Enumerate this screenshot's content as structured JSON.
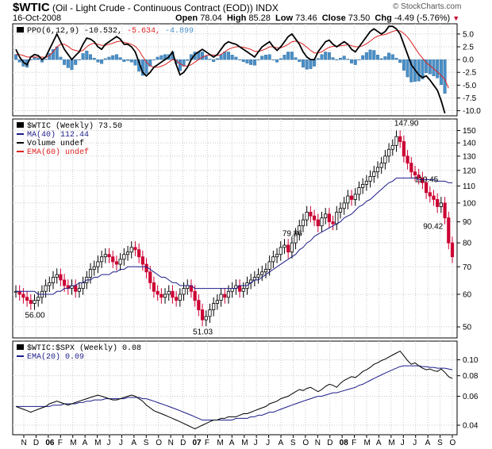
{
  "header": {
    "symbol": "$WTIC",
    "description": "(Oil - Light Crude - Continuous Contract (EOD)) INDX",
    "date": "16-Oct-2008",
    "open_label": "Open",
    "open": "78.04",
    "high_label": "High",
    "high": "85.28",
    "low_label": "Low",
    "low": "73.46",
    "close_label": "Close",
    "close": "73.50",
    "chg_label": "Chg",
    "chg": "-4.49 (-5.76%)",
    "copyright": "© StockCharts.com"
  },
  "colors": {
    "up": "#000000",
    "down": "#cc0033",
    "ma": "#1c1c8a",
    "ema": "#dd2222",
    "hist": "#4a8fc7"
  },
  "chart_data": [
    {
      "type": "line",
      "panel": "PPO",
      "legend": [
        {
          "text": "PPO(6,12,9) -10.532,",
          "color": "#000000"
        },
        {
          "text": "-5.634,",
          "color": "#dd2222"
        },
        {
          "text": "-4.899",
          "color": "#4a8fc7"
        }
      ],
      "ylim": [
        -11,
        7
      ],
      "yticks": [
        "5.0",
        "2.5",
        "0.0",
        "-2.5",
        "-5.0",
        "-7.5",
        "-10.0"
      ],
      "ytick_values": [
        5,
        2.5,
        0,
        -2.5,
        -5,
        -7.5,
        -10
      ],
      "series": [
        {
          "role": "ppo",
          "values": [
            2,
            0.5,
            -0.5,
            -1,
            0.5,
            1,
            0.8,
            0,
            0.5,
            2,
            3.5,
            5,
            3.5,
            2,
            1,
            0,
            0.8,
            1.5,
            3,
            4.2,
            4,
            3.5,
            2.5,
            2,
            3,
            3.5,
            4,
            4.5,
            4,
            3,
            3,
            2.5,
            1.5,
            -0.5,
            -2.5,
            -3.2,
            -2.5,
            -1.5,
            -1,
            -0.5,
            0,
            0.5,
            1.5,
            -1,
            -3,
            -2.5,
            -1.5,
            0,
            1,
            1.5,
            2,
            1.5,
            1,
            0.5,
            1,
            2,
            3,
            3.5,
            3.2,
            3,
            2.5,
            2,
            1.5,
            1,
            0.5,
            1.5,
            2.5,
            3,
            3.5,
            2.5,
            1.8,
            2.5,
            3.5,
            4.5,
            5,
            4,
            3,
            1.5,
            0.5,
            0,
            0,
            1.5,
            2.5,
            3.5,
            3.8,
            3,
            2.5,
            3,
            3.5,
            3,
            2,
            1.5,
            2.5,
            3.5,
            4.5,
            5.5,
            6,
            5.5,
            5,
            5.5,
            6.5,
            6.5,
            6,
            5,
            3,
            1,
            -1,
            -2,
            -3,
            -3.5,
            -3.2,
            -4,
            -5,
            -6,
            -8,
            -10.5
          ]
        },
        {
          "role": "signal",
          "values": [
            1,
            1,
            0.8,
            0.5,
            0.5,
            0.5,
            0.5,
            0.5,
            0.4,
            0.8,
            1.5,
            2.5,
            3,
            3,
            2.6,
            2,
            1.8,
            1.6,
            1.8,
            2.5,
            3,
            3.2,
            3,
            2.8,
            2.8,
            3,
            3.2,
            3.5,
            3.6,
            3.4,
            3.2,
            3,
            2.6,
            1.8,
            0.6,
            -0.5,
            -1.2,
            -1.5,
            -1.5,
            -1.3,
            -1,
            -0.5,
            0,
            -0.2,
            -0.8,
            -1.2,
            -1.3,
            -1,
            -0.5,
            0,
            0.5,
            0.8,
            0.9,
            0.9,
            0.8,
            1,
            1.5,
            2,
            2.3,
            2.5,
            2.5,
            2.4,
            2.2,
            2,
            1.6,
            1.6,
            1.8,
            2.1,
            2.5,
            2.5,
            2.3,
            2.3,
            2.6,
            3,
            3.5,
            3.6,
            3.4,
            3,
            2.4,
            1.8,
            1.3,
            1.3,
            1.5,
            2,
            2.4,
            2.6,
            2.6,
            2.7,
            2.8,
            2.9,
            2.7,
            2.5,
            2.5,
            2.7,
            3.1,
            3.6,
            4.2,
            4.6,
            4.8,
            4.9,
            5.2,
            5.5,
            5.7,
            5.6,
            5.1,
            4.4,
            3.4,
            2.3,
            1.2,
            0.3,
            -0.6,
            -1.2,
            -1.8,
            -2.4,
            -3.1,
            -3.9,
            -5.6
          ]
        }
      ]
    },
    {
      "type": "bar",
      "panel": "Price",
      "legend": [
        {
          "text": "$WTIC (Weekly) 73.50",
          "color": "#000000"
        },
        {
          "text": "MA(40) 112.44",
          "color": "#1c1c8a"
        },
        {
          "text": "Volume undef",
          "color": "#000000"
        },
        {
          "text": "EMA(60) undef",
          "color": "#dd2222"
        }
      ],
      "scale": "log",
      "ylim": [
        47,
        160
      ],
      "yticks": [
        "150",
        "140",
        "130",
        "120",
        "110",
        "100",
        "90",
        "80",
        "70",
        "60",
        "50"
      ],
      "ytick_values": [
        150,
        140,
        130,
        120,
        110,
        100,
        90,
        80,
        70,
        60,
        50
      ],
      "annotations": [
        {
          "text": "147.90",
          "value": 147.9
        },
        {
          "text": "110.45",
          "value": 110.45
        },
        {
          "text": "90.42",
          "value": 90.42
        },
        {
          "text": "79.86",
          "value": 79.86
        },
        {
          "text": "56.00",
          "value": 56.0
        },
        {
          "text": "51.03",
          "value": 51.03
        }
      ],
      "series": [
        {
          "role": "close",
          "values": [
            61,
            60,
            59,
            58,
            57,
            58,
            59,
            61,
            63,
            64,
            66,
            67,
            65,
            63,
            62,
            63,
            61,
            62,
            64,
            66,
            69,
            70,
            72,
            74,
            75,
            74,
            72,
            71,
            73,
            75,
            76,
            78,
            77,
            74,
            71,
            68,
            64,
            61,
            60,
            59,
            60,
            61,
            59,
            58,
            60,
            62,
            63,
            61,
            58,
            55,
            52,
            53,
            55,
            57,
            58,
            60,
            59,
            61,
            62,
            63,
            61,
            62,
            64,
            65,
            66,
            67,
            68,
            69,
            72,
            74,
            75,
            78,
            79,
            76,
            80,
            84,
            88,
            91,
            95,
            93,
            91,
            88,
            92,
            94,
            90,
            89,
            95,
            97,
            100,
            104,
            102,
            105,
            109,
            111,
            113,
            116,
            119,
            122,
            125,
            130,
            135,
            138,
            145,
            141,
            130,
            125,
            119,
            117,
            115,
            112,
            106,
            104,
            102,
            98,
            100,
            92,
            80,
            74
          ]
        },
        {
          "role": "ma40",
          "values": [
            61,
            61,
            61,
            61,
            61,
            61,
            60,
            60,
            60,
            60,
            60,
            61,
            61,
            62,
            62,
            63,
            63,
            64,
            64,
            65,
            65,
            66,
            66,
            67,
            67,
            67,
            68,
            68,
            69,
            69,
            70,
            70,
            70,
            70,
            70,
            70,
            69,
            68,
            67,
            66,
            66,
            65,
            64,
            64,
            63,
            63,
            63,
            63,
            62,
            62,
            62,
            62,
            62,
            62,
            62,
            62,
            62,
            62,
            62,
            62,
            63,
            63,
            63,
            64,
            65,
            65,
            66,
            67,
            68,
            69,
            70,
            71,
            72,
            73,
            74,
            75,
            77,
            78,
            80,
            81,
            83,
            84,
            85,
            86,
            87,
            88,
            89,
            90,
            92,
            93,
            94,
            96,
            98,
            99,
            101,
            102,
            104,
            106,
            108,
            110,
            112,
            113,
            115,
            115,
            115,
            115,
            115,
            115,
            114,
            114,
            114,
            114,
            114,
            113,
            113,
            113,
            112,
            112
          ]
        }
      ]
    },
    {
      "type": "line",
      "panel": "Ratio",
      "legend": [
        {
          "text": "$WTIC:$SPX (Weekly) 0.08",
          "color": "#000000"
        },
        {
          "text": "EMA(20) 0.09",
          "color": "#1c1c8a"
        }
      ],
      "ylim": [
        0.035,
        0.13
      ],
      "yticks": [
        "0.10",
        "0.08",
        "0.06",
        "0.04"
      ],
      "ytick_values": [
        0.1,
        0.08,
        0.06,
        0.04
      ],
      "series": [
        {
          "role": "ratio",
          "values": [
            0.052,
            0.051,
            0.05,
            0.049,
            0.048,
            0.049,
            0.05,
            0.051,
            0.052,
            0.054,
            0.055,
            0.056,
            0.055,
            0.054,
            0.053,
            0.054,
            0.055,
            0.056,
            0.057,
            0.058,
            0.059,
            0.06,
            0.061,
            0.06,
            0.059,
            0.058,
            0.057,
            0.057,
            0.058,
            0.059,
            0.06,
            0.061,
            0.06,
            0.058,
            0.056,
            0.053,
            0.051,
            0.049,
            0.048,
            0.047,
            0.046,
            0.045,
            0.044,
            0.043,
            0.042,
            0.041,
            0.04,
            0.039,
            0.038,
            0.039,
            0.04,
            0.041,
            0.042,
            0.043,
            0.043,
            0.044,
            0.044,
            0.045,
            0.045,
            0.045,
            0.046,
            0.047,
            0.047,
            0.048,
            0.049,
            0.05,
            0.051,
            0.052,
            0.054,
            0.055,
            0.056,
            0.058,
            0.059,
            0.06,
            0.062,
            0.064,
            0.066,
            0.065,
            0.067,
            0.068,
            0.066,
            0.064,
            0.066,
            0.069,
            0.071,
            0.07,
            0.068,
            0.072,
            0.075,
            0.077,
            0.079,
            0.078,
            0.081,
            0.085,
            0.087,
            0.09,
            0.094,
            0.096,
            0.099,
            0.101,
            0.104,
            0.107,
            0.11,
            0.113,
            0.106,
            0.099,
            0.094,
            0.096,
            0.092,
            0.089,
            0.087,
            0.088,
            0.086,
            0.085,
            0.088,
            0.084,
            0.079,
            0.077
          ]
        },
        {
          "role": "ema20",
          "values": [
            0.052,
            0.052,
            0.052,
            0.052,
            0.052,
            0.052,
            0.052,
            0.052,
            0.052,
            0.052,
            0.053,
            0.053,
            0.053,
            0.054,
            0.054,
            0.054,
            0.054,
            0.055,
            0.055,
            0.056,
            0.056,
            0.057,
            0.057,
            0.057,
            0.058,
            0.058,
            0.058,
            0.058,
            0.058,
            0.058,
            0.059,
            0.059,
            0.059,
            0.059,
            0.058,
            0.058,
            0.057,
            0.056,
            0.055,
            0.054,
            0.053,
            0.052,
            0.051,
            0.05,
            0.049,
            0.048,
            0.047,
            0.046,
            0.045,
            0.044,
            0.043,
            0.043,
            0.043,
            0.043,
            0.043,
            0.043,
            0.043,
            0.043,
            0.043,
            0.044,
            0.044,
            0.044,
            0.044,
            0.045,
            0.045,
            0.046,
            0.046,
            0.047,
            0.048,
            0.048,
            0.049,
            0.05,
            0.051,
            0.052,
            0.053,
            0.054,
            0.055,
            0.056,
            0.057,
            0.058,
            0.059,
            0.06,
            0.06,
            0.061,
            0.062,
            0.063,
            0.063,
            0.064,
            0.065,
            0.066,
            0.067,
            0.068,
            0.07,
            0.071,
            0.073,
            0.075,
            0.077,
            0.079,
            0.081,
            0.083,
            0.085,
            0.087,
            0.089,
            0.091,
            0.092,
            0.092,
            0.092,
            0.092,
            0.092,
            0.091,
            0.091,
            0.09,
            0.09,
            0.089,
            0.089,
            0.089,
            0.088,
            0.087
          ]
        }
      ]
    }
  ],
  "x_axis": {
    "labels": [
      "N",
      "D",
      "06",
      "F",
      "M",
      "A",
      "M",
      "J",
      "J",
      "A",
      "S",
      "O",
      "N",
      "D",
      "07",
      "F",
      "M",
      "A",
      "M",
      "J",
      "J",
      "A",
      "S",
      "O",
      "N",
      "D",
      "08",
      "F",
      "M",
      "A",
      "M",
      "J",
      "J",
      "A",
      "S",
      "O"
    ],
    "bold": [
      "06",
      "07",
      "08"
    ]
  }
}
